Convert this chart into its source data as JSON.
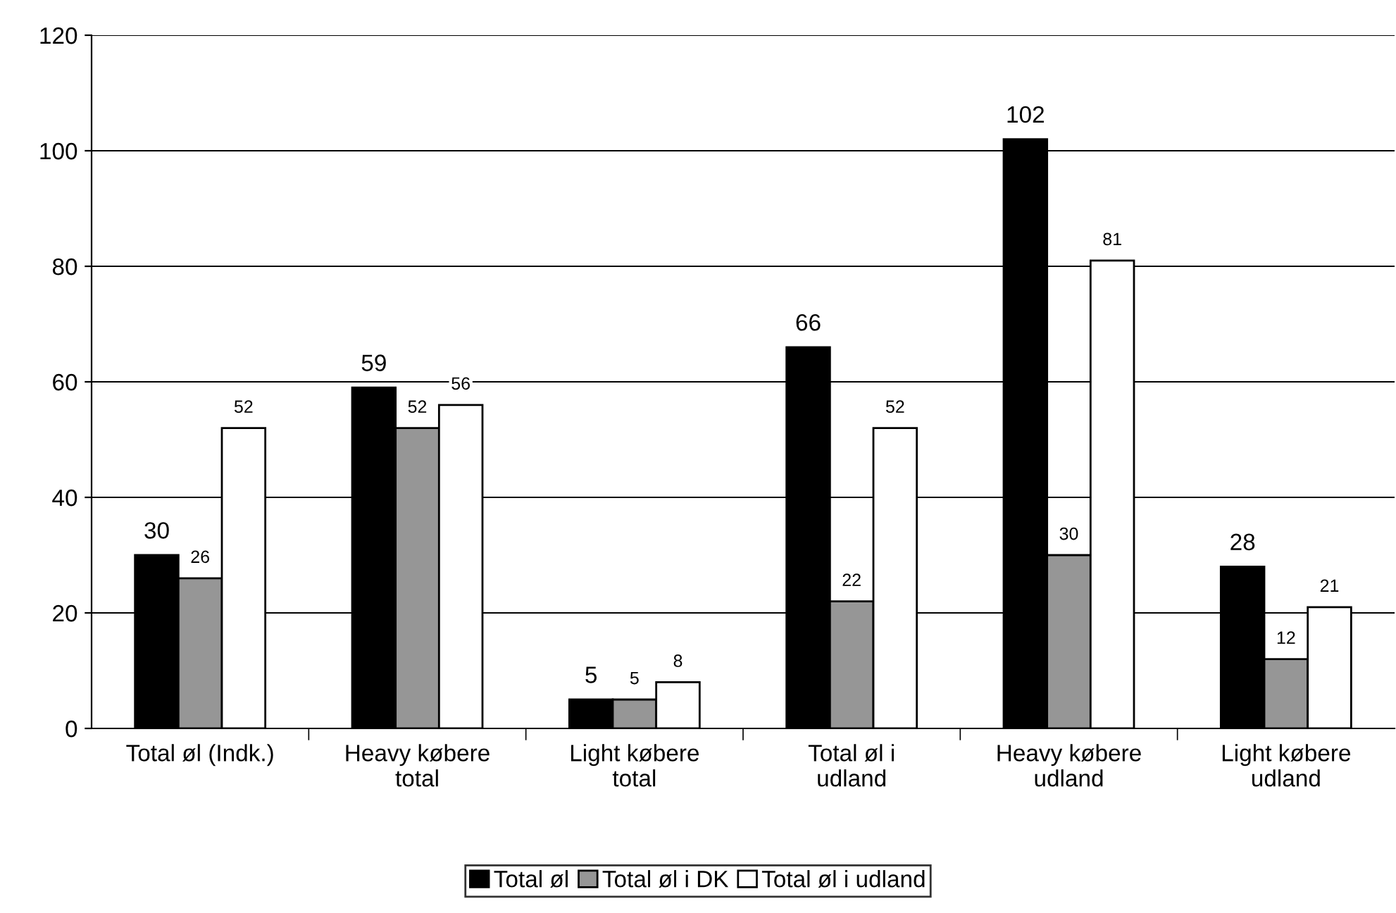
{
  "chart_data": {
    "type": "bar",
    "categories": [
      "Total øl (Indk.)",
      "Heavy købere\ntotal",
      "Light købere\ntotal",
      "Total øl i\nudland",
      "Heavy købere\nudland",
      "Light købere\nudland"
    ],
    "series": [
      {
        "name": "Total øl",
        "color": "#000000",
        "values": [
          30,
          59,
          5,
          66,
          102,
          28
        ]
      },
      {
        "name": "Total øl i DK",
        "color": "#969696",
        "values": [
          26,
          52,
          5,
          22,
          30,
          12
        ]
      },
      {
        "name": "Total øl i udland",
        "color": "#ffffff",
        "values": [
          52,
          56,
          8,
          52,
          81,
          21
        ]
      }
    ],
    "ylim": [
      0,
      120
    ],
    "yticks": [
      0,
      20,
      40,
      60,
      80,
      100,
      120
    ],
    "grid": "y",
    "legend": "bottom",
    "data_labels": true
  }
}
